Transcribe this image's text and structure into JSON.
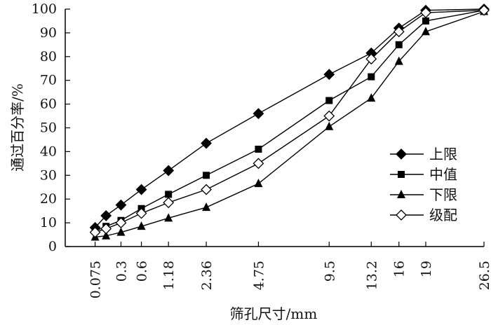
{
  "chart_data": {
    "type": "line",
    "xlabel": "筛孔尺寸/mm",
    "ylabel": "通过百分率/%",
    "x": [
      "0.075",
      "0.15",
      "0.3",
      "0.6",
      "1.18",
      "2.36",
      "4.75",
      "9.5",
      "13.2",
      "16",
      "19",
      "26.5"
    ],
    "x_tick_labels": [
      "0.075",
      "0.3",
      "0.6",
      "1.18",
      "2.36",
      "4.75",
      "9.5",
      "13.2",
      "16",
      "19",
      "26.5"
    ],
    "x_scale": "power 0.45 (gradation chart)",
    "y_ticks": [
      "0",
      "10",
      "20",
      "30",
      "40",
      "50",
      "60",
      "70",
      "80",
      "90",
      "100"
    ],
    "ylim": [
      0,
      100
    ],
    "grid": false,
    "legend_position": "right",
    "series": [
      {
        "name": "上限",
        "marker": "diamond-filled",
        "values": [
          8,
          13,
          17.5,
          24,
          32,
          43.5,
          56,
          72.5,
          81.5,
          92,
          99.5,
          100
        ]
      },
      {
        "name": "中值",
        "marker": "square-filled",
        "values": [
          6.5,
          8.5,
          11,
          16,
          22,
          30,
          41,
          61.5,
          71.5,
          85,
          95,
          99.5
        ]
      },
      {
        "name": "下限",
        "marker": "triangle-filled",
        "values": [
          4,
          4.5,
          6,
          8.5,
          12,
          16.5,
          26.5,
          50.5,
          62.5,
          78,
          90.5,
          99
        ]
      },
      {
        "name": "级配",
        "marker": "diamond-open",
        "values": [
          6,
          7.5,
          10,
          14,
          18.5,
          24,
          35,
          55,
          79,
          90.5,
          98.5,
          99.5
        ]
      }
    ]
  }
}
